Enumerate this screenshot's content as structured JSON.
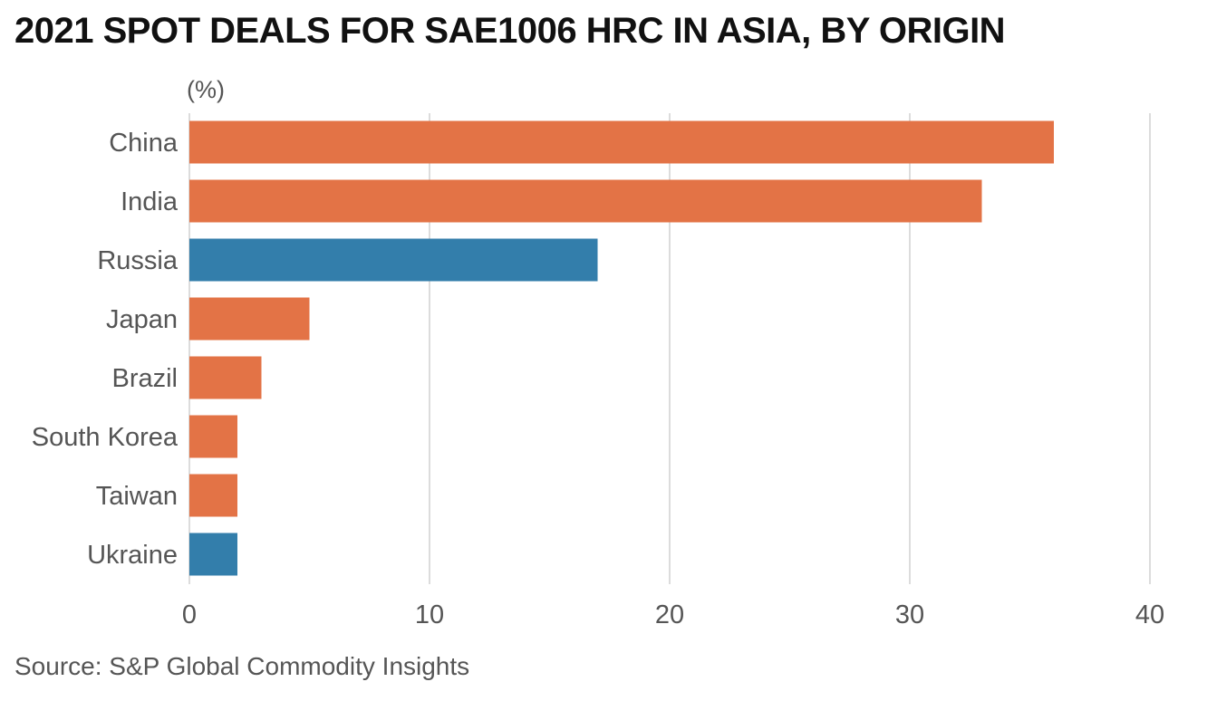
{
  "chart_data": {
    "type": "bar",
    "orientation": "horizontal",
    "title": "2021 SPOT DEALS FOR SAE1006 HRC IN ASIA, BY ORIGIN",
    "unit_label": "(%)",
    "xlabel": "",
    "ylabel": "",
    "categories": [
      "China",
      "India",
      "Russia",
      "Japan",
      "Brazil",
      "South Korea",
      "Taiwan",
      "Ukraine"
    ],
    "values": [
      36,
      33,
      17,
      5,
      3,
      2,
      2,
      2
    ],
    "bar_colors": [
      "#E37346",
      "#E37346",
      "#337EAB",
      "#E37346",
      "#E37346",
      "#E37346",
      "#E37346",
      "#337EAB"
    ],
    "xlim": [
      0,
      40
    ],
    "xticks": [
      0,
      10,
      20,
      30,
      40
    ],
    "grid": true,
    "source": "Source: S&P Global Commodity Insights"
  }
}
